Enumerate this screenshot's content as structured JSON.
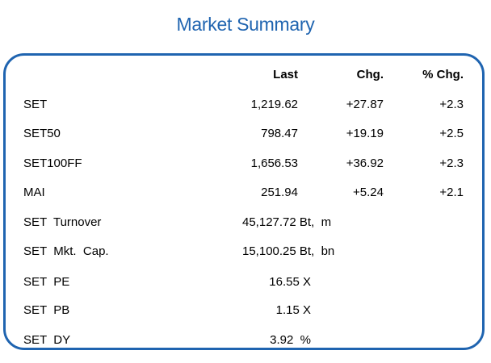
{
  "title": "Market Summary",
  "headers": {
    "last": "Last",
    "chg": "Chg.",
    "pct": "% Chg."
  },
  "indices": [
    {
      "name": "SET",
      "last": "1,219.62",
      "chg": "+27.87",
      "pct": "+2.3"
    },
    {
      "name": "SET50",
      "last": "798.47",
      "chg": "+19.19",
      "pct": "+2.5"
    },
    {
      "name": "SET100FF",
      "last": "1,656.53",
      "chg": "+36.92",
      "pct": "+2.3"
    },
    {
      "name": "MAI",
      "last": "251.94",
      "chg": "+5.24",
      "pct": "+2.1"
    }
  ],
  "stats": [
    {
      "name": "SET  Turnover",
      "value": "45,127.72 Bt,  m"
    },
    {
      "name": "SET  Mkt.  Cap.",
      "value": "15,100.25 Bt,  bn"
    },
    {
      "name": "SET  PE",
      "value": "16.55 X"
    },
    {
      "name": "SET  PB",
      "value": "1.15 X"
    },
    {
      "name": "SET  DY",
      "value": "3.92  %"
    }
  ],
  "colors": {
    "accent": "#1f64b0"
  }
}
